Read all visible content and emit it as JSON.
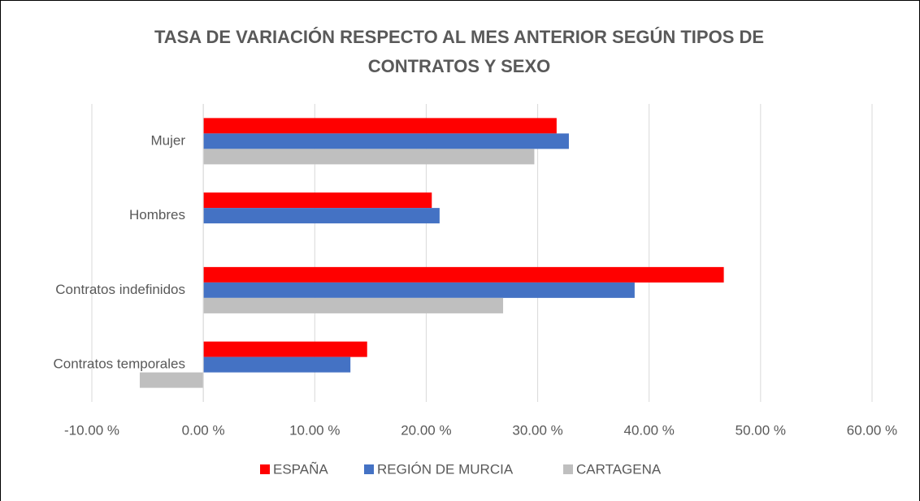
{
  "chart_data": {
    "type": "hbar",
    "title": "TASA DE VARIACIÓN RESPECTO AL MES ANTERIOR SEGÚN TIPOS DE CONTRATOS Y SEXO",
    "categories": [
      "Mujer",
      "Hombres",
      "Contratos indefinidos",
      "Contratos temporales"
    ],
    "series": [
      {
        "name": "ESPAÑA",
        "color": "#ff0000",
        "values": [
          31.7,
          20.5,
          46.7,
          14.7
        ]
      },
      {
        "name": "REGIÓN DE MURCIA",
        "color": "#4472c4",
        "values": [
          32.8,
          21.2,
          38.7,
          13.2
        ]
      },
      {
        "name": "CARTAGENA",
        "color": "#bfbfbf",
        "values": [
          29.7,
          null,
          26.9,
          -5.7
        ]
      }
    ],
    "xlim": [
      -10,
      60
    ],
    "xticks": [
      {
        "value": -10,
        "label": "-10.00 %"
      },
      {
        "value": 0,
        "label": "0.00 %"
      },
      {
        "value": 10,
        "label": "10.00 %"
      },
      {
        "value": 20,
        "label": "20.00 %"
      },
      {
        "value": 30,
        "label": "30.00 %"
      },
      {
        "value": 40,
        "label": "40.00 %"
      },
      {
        "value": 50,
        "label": "50.00 %"
      },
      {
        "value": 60,
        "label": "60.00 %"
      }
    ],
    "grid": true,
    "legend": "bottom"
  }
}
